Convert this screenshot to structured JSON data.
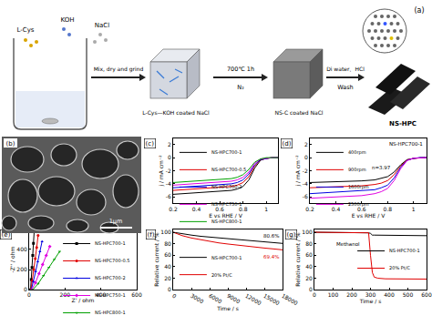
{
  "figure": {
    "panel_a": {
      "label": "(a)",
      "reagents": [
        "L-Cys",
        "KOH",
        "NaCl"
      ],
      "step1": "Mix, dry and grind",
      "step2": [
        "700℃ 1h",
        "N₂"
      ],
      "step3": [
        "Di water、HCl",
        "Wash"
      ],
      "products": [
        "L-Cys—KOH coated NaCl",
        "NS-C coated NaCl",
        "NS-HPC"
      ]
    },
    "panel_b": {
      "label": "(b)",
      "scale_bar": "1μm"
    }
  },
  "chart_data": [
    {
      "title": "(c)",
      "type": "line",
      "x_label": "E vs RHE / V",
      "y_label": "j / mA cm⁻²",
      "x": [
        0.2,
        0.3,
        0.4,
        0.5,
        0.6,
        0.7,
        0.75,
        0.8,
        0.85,
        0.9,
        0.95,
        1.0,
        1.05,
        1.1
      ],
      "series": [
        {
          "name": "NS-HPC700-1",
          "color": "#000000",
          "values": [
            -5.6,
            -5.5,
            -5.4,
            -5.3,
            -5.2,
            -5.0,
            -4.8,
            -4.4,
            -3.4,
            -1.6,
            -0.4,
            -0.1,
            0,
            0
          ]
        },
        {
          "name": "NS-HPC700-0.5",
          "color": "#e00000",
          "values": [
            -5.0,
            -4.9,
            -4.8,
            -4.7,
            -4.6,
            -4.4,
            -4.2,
            -3.8,
            -2.9,
            -1.3,
            -0.3,
            -0.1,
            0,
            0
          ]
        },
        {
          "name": "NS-HPC700-2",
          "color": "#0000e0",
          "values": [
            -4.6,
            -4.5,
            -4.4,
            -4.3,
            -4.2,
            -4.0,
            -3.8,
            -3.4,
            -2.5,
            -1.1,
            -0.3,
            -0.1,
            0,
            0
          ]
        },
        {
          "name": "NS-HPC750-1",
          "color": "#e000e0",
          "values": [
            -4.2,
            -4.1,
            -4.0,
            -3.9,
            -3.8,
            -3.6,
            -3.4,
            -3.0,
            -2.2,
            -0.9,
            -0.2,
            -0.05,
            0,
            0
          ]
        },
        {
          "name": "NS-HPC800-1",
          "color": "#00a000",
          "values": [
            -3.8,
            -3.7,
            -3.6,
            -3.5,
            -3.4,
            -3.2,
            -3.0,
            -2.6,
            -1.8,
            -0.7,
            -0.2,
            0,
            0,
            0
          ]
        }
      ],
      "xlim": [
        0.2,
        1.1
      ],
      "xticks": [
        0.2,
        0.4,
        0.6,
        0.8,
        1
      ],
      "ylim": [
        -7,
        3
      ],
      "yticks": [
        -6,
        -4,
        -2,
        0,
        2
      ],
      "grid": false,
      "legend": "upper left"
    },
    {
      "title": "(d)",
      "type": "line",
      "x_label": "E vs RHE / V",
      "y_label": "j / mA cm⁻²",
      "annotations": [
        "NS-HPC700-1",
        "n=3.97"
      ],
      "x": [
        0.2,
        0.3,
        0.4,
        0.5,
        0.6,
        0.7,
        0.75,
        0.8,
        0.85,
        0.9,
        0.95,
        1.0,
        1.05,
        1.1
      ],
      "series": [
        {
          "name": "400rpm",
          "color": "#000000",
          "values": [
            -3.8,
            -3.75,
            -3.7,
            -3.65,
            -3.55,
            -3.4,
            -3.2,
            -2.9,
            -2.2,
            -1.1,
            -0.3,
            -0.1,
            0,
            0
          ]
        },
        {
          "name": "900rpm",
          "color": "#e00000",
          "values": [
            -4.6,
            -4.55,
            -4.5,
            -4.4,
            -4.3,
            -4.1,
            -3.9,
            -3.5,
            -2.6,
            -1.3,
            -0.35,
            -0.1,
            0,
            0
          ]
        },
        {
          "name": "1600rpm",
          "color": "#0000e0",
          "values": [
            -5.5,
            -5.4,
            -5.3,
            -5.2,
            -5.1,
            -4.9,
            -4.6,
            -4.2,
            -3.1,
            -1.5,
            -0.4,
            -0.1,
            0,
            0
          ]
        },
        {
          "name": "2500rpm",
          "color": "#e000e0",
          "values": [
            -6.2,
            -6.1,
            -6.0,
            -5.9,
            -5.8,
            -5.5,
            -5.2,
            -4.7,
            -3.5,
            -1.7,
            -0.45,
            -0.1,
            0,
            0
          ]
        }
      ],
      "xlim": [
        0.2,
        1.1
      ],
      "xticks": [
        0.2,
        0.4,
        0.6,
        0.8,
        1
      ],
      "ylim": [
        -7,
        3
      ],
      "yticks": [
        -6,
        -4,
        -2,
        0,
        2
      ],
      "grid": false,
      "legend": "upper left"
    },
    {
      "title": "(e)",
      "type": "scatter",
      "x_label": "Z' / ohm",
      "y_label": "-Z'' / ohm",
      "series": [
        {
          "name": "NS-HPC700-1",
          "color": "#000000",
          "marker": "square",
          "x": [
            8,
            12,
            16,
            20,
            24,
            28
          ],
          "values": [
            0,
            100,
            220,
            340,
            460,
            580
          ]
        },
        {
          "name": "NS-HPC700-0.5",
          "color": "#e00000",
          "marker": "circle",
          "x": [
            10,
            18,
            26,
            34,
            42,
            50
          ],
          "values": [
            0,
            90,
            200,
            310,
            420,
            540
          ]
        },
        {
          "name": "NS-HPC700-2",
          "color": "#0000e0",
          "marker": "triangle-up",
          "x": [
            12,
            24,
            36,
            48,
            60,
            72
          ],
          "values": [
            0,
            80,
            180,
            280,
            380,
            480
          ]
        },
        {
          "name": "NS-HPC750-1",
          "color": "#e000e0",
          "marker": "diamond",
          "x": [
            15,
            35,
            55,
            75,
            95,
            115
          ],
          "values": [
            0,
            70,
            160,
            250,
            340,
            430
          ]
        },
        {
          "name": "NS-HPC800-1",
          "color": "#00a000",
          "marker": "triangle-down",
          "x": [
            20,
            50,
            80,
            110,
            140,
            170
          ],
          "values": [
            0,
            60,
            140,
            220,
            300,
            380
          ]
        }
      ],
      "xlim": [
        0,
        600
      ],
      "xticks": [
        0,
        200,
        400,
        600
      ],
      "ylim": [
        0,
        600
      ],
      "yticks": [
        0,
        200,
        400,
        600
      ],
      "grid": false,
      "legend": "upper right"
    },
    {
      "title": "(f)",
      "type": "line",
      "x_label": "Time / s",
      "y_label": "Relative current / %",
      "annotations": [
        "80.6%",
        "69.4%"
      ],
      "x": [
        0,
        1500,
        3000,
        4500,
        6000,
        7500,
        9000,
        10500,
        12000,
        13500,
        15000,
        16500,
        18000
      ],
      "series": [
        {
          "name": "NS-HPC700-1",
          "color": "#000000",
          "values": [
            100,
            97,
            95,
            93,
            91.5,
            90,
            88.5,
            87,
            85.5,
            84,
            83,
            81.8,
            80.6
          ]
        },
        {
          "name": "20% Pt/C",
          "color": "#e00000",
          "values": [
            100,
            94,
            90,
            87,
            84,
            81.5,
            79.5,
            77.5,
            75.5,
            74,
            72.5,
            71,
            69.4
          ]
        }
      ],
      "xlim": [
        0,
        18000
      ],
      "xticks": [
        0,
        3000,
        6000,
        9000,
        12000,
        15000,
        18000
      ],
      "ylim": [
        0,
        105
      ],
      "yticks": [
        0,
        20,
        40,
        60,
        80,
        100
      ],
      "grid": false,
      "legend": "lower left"
    },
    {
      "title": "(g)",
      "type": "line",
      "x_label": "Time / s",
      "y_label": "Relative current / %",
      "annotations": [
        "Methanol"
      ],
      "x": [
        0,
        50,
        100,
        150,
        200,
        250,
        290,
        300,
        310,
        320,
        340,
        380,
        450,
        500,
        550,
        600
      ],
      "series": [
        {
          "name": "NS-HPC700-1",
          "color": "#000000",
          "values": [
            100,
            100,
            99.5,
            99.5,
            99,
            99,
            99,
            98,
            95,
            95,
            95,
            95,
            94.5,
            94.5,
            94,
            94
          ]
        },
        {
          "name": "20% Pt/C",
          "color": "#e00000",
          "values": [
            100,
            100,
            99.5,
            99,
            99,
            99,
            99,
            60,
            30,
            22,
            20,
            19,
            19,
            19,
            18.5,
            18.5
          ]
        }
      ],
      "xlim": [
        0,
        600
      ],
      "xticks": [
        0,
        100,
        200,
        300,
        400,
        500,
        600
      ],
      "ylim": [
        0,
        105
      ],
      "yticks": [
        0,
        20,
        40,
        60,
        80,
        100
      ],
      "grid": false,
      "legend": "center right"
    }
  ]
}
